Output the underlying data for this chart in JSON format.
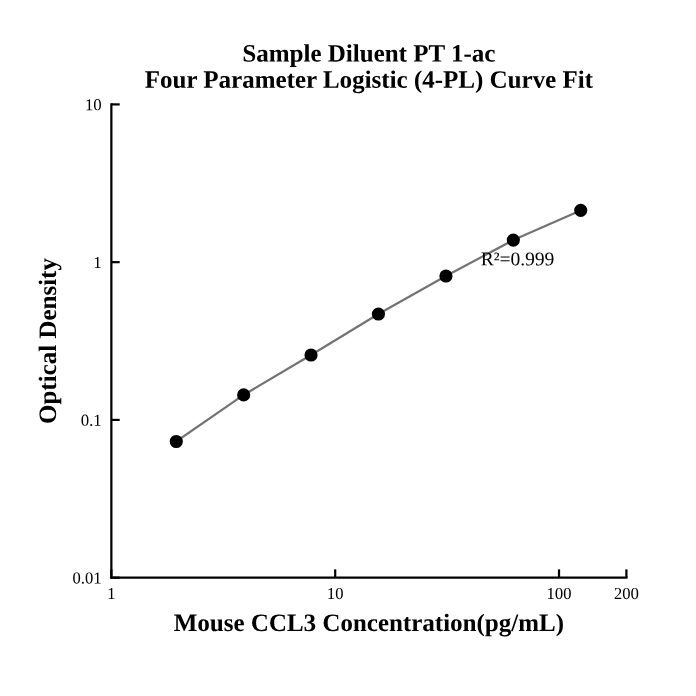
{
  "chart_data": {
    "type": "line",
    "title": "Sample Diluent PT 1-ac\nFour Parameter Logistic (4-PL) Curve Fit",
    "xlabel": "Mouse CCL3 Concentration(pg/mL)",
    "ylabel": "Optical Density",
    "annotations": [
      "R²=0.999"
    ],
    "log": "xy",
    "x": [
      1.95,
      3.9,
      7.8,
      15.6,
      31.25,
      62.5,
      125
    ],
    "series": [
      {
        "color": "#000000",
        "values": [
          0.073,
          0.144,
          0.258,
          0.469,
          0.817,
          1.38,
          2.13
        ]
      }
    ],
    "xlim": [
      1,
      200
    ],
    "xticks": [
      1,
      10,
      100,
      200
    ],
    "ylim": [
      0.01,
      10
    ],
    "yticks": [
      0.01,
      0.1,
      1,
      10
    ],
    "marker": "circle",
    "line_style": "solid",
    "grid": false,
    "legend": false
  }
}
